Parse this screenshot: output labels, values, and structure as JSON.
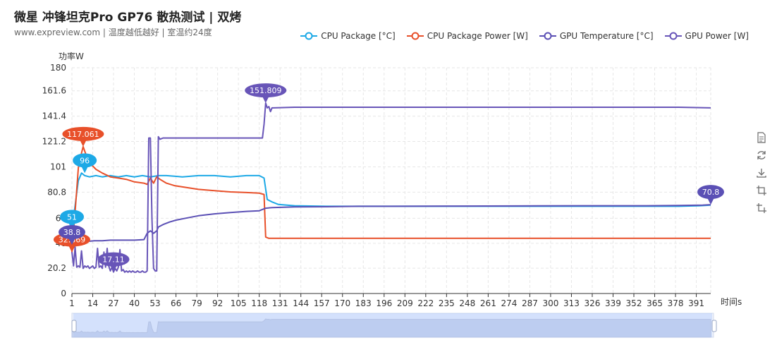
{
  "title": "微星 冲锋坦克Pro GP76 散热测试 | 双烤",
  "subtitle": "www.expreview.com | 温度越低越好 | 室温约24度",
  "toolbox": {
    "icons": [
      "data-view-icon",
      "restore-icon",
      "save-image-icon",
      "zoom-icon",
      "zoom-reset-icon"
    ]
  },
  "chart_data": {
    "type": "line",
    "title": "微星 冲锋坦克Pro GP76 散热测试 | 双烤",
    "subtitle": "www.expreview.com | 温度越低越好 | 室温约24度",
    "xlabel": "时间s",
    "ylabel": "功率W",
    "ylim": [
      0,
      180
    ],
    "yticks": [
      "0",
      "20.2",
      "40",
      "60",
      "80.8",
      "101",
      "121.2",
      "141.4",
      "161.6",
      "180"
    ],
    "xlim": [
      1,
      400
    ],
    "xticks": [
      1,
      14,
      27,
      40,
      53,
      66,
      79,
      92,
      105,
      118,
      131,
      144,
      157,
      170,
      183,
      196,
      209,
      222,
      235,
      248,
      261,
      274,
      287,
      300,
      313,
      326,
      339,
      352,
      365,
      378,
      391
    ],
    "grid": true,
    "legend_position": "top-right",
    "series": [
      {
        "name": "CPU Package [°C]",
        "color": "#1da9e6",
        "points": [
          [
            1,
            51
          ],
          [
            3,
            70
          ],
          [
            5,
            90
          ],
          [
            7,
            96
          ],
          [
            9,
            94
          ],
          [
            12,
            93
          ],
          [
            16,
            94
          ],
          [
            20,
            93
          ],
          [
            25,
            94
          ],
          [
            30,
            93
          ],
          [
            35,
            94
          ],
          [
            40,
            93
          ],
          [
            45,
            94
          ],
          [
            50,
            93
          ],
          [
            55,
            94
          ],
          [
            60,
            94
          ],
          [
            70,
            93
          ],
          [
            80,
            94
          ],
          [
            90,
            94
          ],
          [
            100,
            93
          ],
          [
            110,
            94
          ],
          [
            118,
            94
          ],
          [
            121,
            92
          ],
          [
            123,
            75
          ],
          [
            126,
            73
          ],
          [
            130,
            71
          ],
          [
            140,
            70
          ],
          [
            160,
            69.5
          ],
          [
            180,
            69.5
          ],
          [
            200,
            69.5
          ],
          [
            240,
            69.5
          ],
          [
            280,
            69.5
          ],
          [
            320,
            69.5
          ],
          [
            360,
            69.5
          ],
          [
            380,
            69.5
          ],
          [
            393,
            70
          ],
          [
            400,
            70.5
          ]
        ],
        "markers": [
          {
            "x": 1,
            "y": 51,
            "label": "51"
          },
          {
            "x": 9,
            "y": 96,
            "label": "96"
          }
        ]
      },
      {
        "name": "CPU Package Power [W]",
        "color": "#e8502a",
        "points": [
          [
            1,
            32.869
          ],
          [
            3,
            65
          ],
          [
            5,
            100
          ],
          [
            7,
            112
          ],
          [
            8,
            117.061
          ],
          [
            10,
            110
          ],
          [
            13,
            103
          ],
          [
            16,
            99
          ],
          [
            20,
            96
          ],
          [
            25,
            93
          ],
          [
            30,
            92
          ],
          [
            35,
            91
          ],
          [
            40,
            89
          ],
          [
            46,
            88
          ],
          [
            48,
            87
          ],
          [
            50,
            92
          ],
          [
            52,
            88
          ],
          [
            54,
            93
          ],
          [
            56,
            91
          ],
          [
            60,
            88
          ],
          [
            65,
            86
          ],
          [
            70,
            85
          ],
          [
            80,
            83
          ],
          [
            90,
            82
          ],
          [
            100,
            81
          ],
          [
            110,
            80.5
          ],
          [
            118,
            80
          ],
          [
            121,
            79
          ],
          [
            122,
            45
          ],
          [
            124,
            44
          ],
          [
            150,
            44
          ],
          [
            200,
            44
          ],
          [
            250,
            44
          ],
          [
            300,
            44
          ],
          [
            350,
            44
          ],
          [
            400,
            44
          ]
        ],
        "markers": [
          {
            "x": 1,
            "y": 32.869,
            "label": "32.869"
          },
          {
            "x": 8,
            "y": 117.061,
            "label": "117.061"
          }
        ]
      },
      {
        "name": "GPU Temperature [°C]",
        "color": "#5b50b5",
        "points": [
          [
            1,
            38.8
          ],
          [
            3,
            40
          ],
          [
            6,
            41
          ],
          [
            10,
            41.5
          ],
          [
            15,
            42
          ],
          [
            20,
            42
          ],
          [
            25,
            42.5
          ],
          [
            30,
            42.5
          ],
          [
            35,
            42.5
          ],
          [
            40,
            42.5
          ],
          [
            46,
            43
          ],
          [
            48,
            48
          ],
          [
            50,
            50
          ],
          [
            52,
            48
          ],
          [
            54,
            50
          ],
          [
            55,
            53
          ],
          [
            58,
            55
          ],
          [
            62,
            57
          ],
          [
            66,
            58.5
          ],
          [
            72,
            60
          ],
          [
            80,
            62
          ],
          [
            90,
            63.5
          ],
          [
            100,
            64.5
          ],
          [
            110,
            65.5
          ],
          [
            118,
            66
          ],
          [
            122,
            68
          ],
          [
            126,
            68.5
          ],
          [
            140,
            69
          ],
          [
            160,
            69.2
          ],
          [
            180,
            69.5
          ],
          [
            200,
            69.5
          ],
          [
            240,
            69.7
          ],
          [
            280,
            69.8
          ],
          [
            320,
            70
          ],
          [
            360,
            70
          ],
          [
            380,
            70.2
          ],
          [
            395,
            70.5
          ],
          [
            400,
            70.8
          ]
        ],
        "markers": [
          {
            "x": 1,
            "y": 38.8,
            "label": "38.8"
          },
          {
            "x": 400,
            "y": 70.8,
            "label": "70.8"
          }
        ]
      },
      {
        "name": "GPU Power [W]",
        "color": "#6855b8",
        "points": [
          [
            1,
            33
          ],
          [
            2,
            22
          ],
          [
            3,
            37
          ],
          [
            4,
            21
          ],
          [
            5,
            22
          ],
          [
            6,
            21
          ],
          [
            7,
            34
          ],
          [
            8,
            20
          ],
          [
            9,
            22
          ],
          [
            10,
            21
          ],
          [
            11,
            22
          ],
          [
            12,
            20
          ],
          [
            13,
            21
          ],
          [
            14,
            22
          ],
          [
            15,
            20
          ],
          [
            16,
            21
          ],
          [
            17,
            36
          ],
          [
            18,
            21
          ],
          [
            19,
            22
          ],
          [
            20,
            20
          ],
          [
            21,
            33
          ],
          [
            22,
            21
          ],
          [
            23,
            36
          ],
          [
            24,
            22
          ],
          [
            25,
            18
          ],
          [
            26,
            21
          ],
          [
            27,
            17.11
          ],
          [
            28,
            20
          ],
          [
            29,
            18
          ],
          [
            30,
            21
          ],
          [
            31,
            35
          ],
          [
            32,
            18
          ],
          [
            33,
            19
          ],
          [
            34,
            17
          ],
          [
            35,
            18
          ],
          [
            36,
            17
          ],
          [
            37,
            18
          ],
          [
            38,
            17
          ],
          [
            39,
            18
          ],
          [
            40,
            17
          ],
          [
            41,
            17
          ],
          [
            42,
            18
          ],
          [
            43,
            17
          ],
          [
            44,
            17
          ],
          [
            45,
            18
          ],
          [
            46,
            17
          ],
          [
            47,
            17
          ],
          [
            48,
            18
          ],
          [
            49,
            124
          ],
          [
            50,
            124
          ],
          [
            51,
            60
          ],
          [
            52,
            20
          ],
          [
            53,
            18
          ],
          [
            54,
            18
          ],
          [
            55,
            125
          ],
          [
            56,
            123
          ],
          [
            58,
            124
          ],
          [
            70,
            124
          ],
          [
            80,
            124
          ],
          [
            90,
            124
          ],
          [
            100,
            124
          ],
          [
            110,
            124
          ],
          [
            120,
            124
          ],
          [
            121,
            135
          ],
          [
            122,
            151.809
          ],
          [
            123,
            148
          ],
          [
            124,
            149
          ],
          [
            125,
            145
          ],
          [
            126,
            148
          ],
          [
            127,
            148
          ],
          [
            140,
            148.5
          ],
          [
            160,
            148.5
          ],
          [
            180,
            148.5
          ],
          [
            200,
            148.5
          ],
          [
            240,
            148.5
          ],
          [
            280,
            148.5
          ],
          [
            320,
            148.5
          ],
          [
            360,
            148.5
          ],
          [
            380,
            148.5
          ],
          [
            400,
            148
          ]
        ],
        "markers": [
          {
            "x": 27,
            "y": 17.11,
            "label": "17.11"
          },
          {
            "x": 122,
            "y": 151.809,
            "label": "151.809"
          }
        ]
      }
    ]
  }
}
